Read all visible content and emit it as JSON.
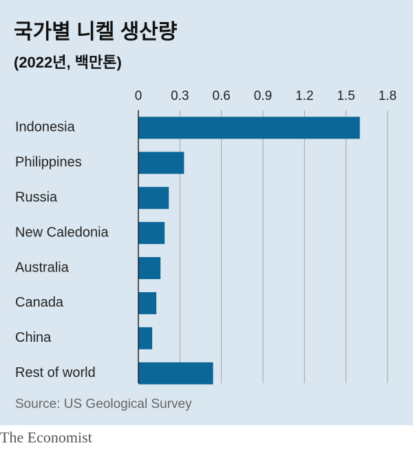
{
  "chart_data": {
    "type": "bar",
    "orientation": "horizontal",
    "title": "국가별 니켈 생산량",
    "subtitle": "(2022년, 백만톤)",
    "categories": [
      "Indonesia",
      "Philippines",
      "Russia",
      "New Caledonia",
      "Australia",
      "Canada",
      "China",
      "Rest of world"
    ],
    "values": [
      1.6,
      0.33,
      0.22,
      0.19,
      0.16,
      0.13,
      0.1,
      0.54
    ],
    "color": "#0b6797",
    "xlim": [
      0,
      1.8
    ],
    "xticks": [
      0,
      0.3,
      0.6,
      0.9,
      1.2,
      1.5,
      1.8
    ],
    "grid": true,
    "source": "Source: US Geological Survey",
    "brand": "The Economist"
  }
}
